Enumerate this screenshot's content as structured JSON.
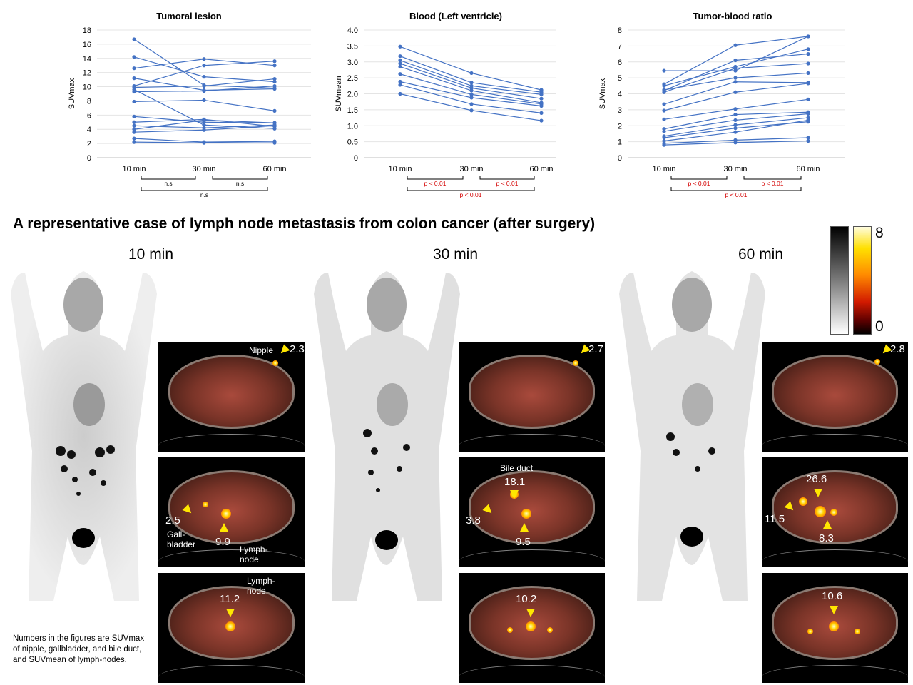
{
  "chart_data": [
    {
      "type": "line",
      "title": "Tumoral lesion",
      "ylabel": "SUVmax",
      "ylim": [
        0,
        18
      ],
      "yticks": [
        "0",
        "2",
        "4",
        "6",
        "8",
        "10",
        "12",
        "14",
        "16",
        "18"
      ],
      "categories": [
        "10 min",
        "30 min",
        "60 min"
      ],
      "color": "#4472c4",
      "series": [
        {
          "values": [
            16.7,
            10.2,
            9.8
          ]
        },
        {
          "values": [
            14.2,
            11.4,
            10.7
          ]
        },
        {
          "values": [
            12.6,
            13.9,
            13.0
          ]
        },
        {
          "values": [
            11.2,
            9.5,
            9.7
          ]
        },
        {
          "values": [
            10.1,
            13.0,
            13.6
          ]
        },
        {
          "values": [
            9.9,
            10.1,
            11.1
          ]
        },
        {
          "values": [
            9.6,
            4.6,
            4.1
          ]
        },
        {
          "values": [
            9.3,
            9.4,
            10.1
          ]
        },
        {
          "values": [
            7.9,
            8.1,
            6.6
          ]
        },
        {
          "values": [
            5.8,
            5.0,
            4.9
          ]
        },
        {
          "values": [
            5.0,
            5.4,
            4.4
          ]
        },
        {
          "values": [
            4.5,
            4.2,
            4.6
          ]
        },
        {
          "values": [
            4.0,
            5.3,
            4.9
          ]
        },
        {
          "values": [
            3.6,
            3.9,
            4.5
          ]
        },
        {
          "values": [
            2.7,
            2.2,
            2.3
          ]
        },
        {
          "values": [
            2.2,
            2.1,
            2.1
          ]
        }
      ],
      "brackets": [
        "n.s",
        "n.s",
        "n.s"
      ]
    },
    {
      "type": "line",
      "title": "Blood (Left ventricle)",
      "ylabel": "SUVmean",
      "ylim": [
        0,
        4.0
      ],
      "yticks": [
        "0",
        "0.5",
        "1.0",
        "1.5",
        "2.0",
        "2.5",
        "3.0",
        "3.5",
        "4.0"
      ],
      "categories": [
        "10 min",
        "30 min",
        "60 min"
      ],
      "color": "#4472c4",
      "series": [
        {
          "values": [
            3.48,
            2.65,
            2.12
          ]
        },
        {
          "values": [
            3.18,
            2.35,
            2.05
          ]
        },
        {
          "values": [
            3.05,
            2.25,
            1.98
          ]
        },
        {
          "values": [
            2.95,
            2.18,
            1.85
          ]
        },
        {
          "values": [
            2.85,
            2.1,
            1.72
          ]
        },
        {
          "values": [
            2.62,
            1.98,
            1.68
          ]
        },
        {
          "values": [
            2.38,
            1.88,
            1.62
          ]
        },
        {
          "values": [
            2.28,
            1.68,
            1.4
          ]
        },
        {
          "values": [
            2.0,
            1.48,
            1.16
          ]
        }
      ],
      "brackets": [
        "p < 0.01",
        "p < 0.01",
        "p < 0.01"
      ]
    },
    {
      "type": "line",
      "title": "Tumor-blood ratio",
      "ylabel": "SUVmax",
      "ylim": [
        0,
        8
      ],
      "yticks": [
        "0",
        "1",
        "2",
        "3",
        "4",
        "5",
        "6",
        "7",
        "8"
      ],
      "categories": [
        "10 min",
        "30 min",
        "60 min"
      ],
      "color": "#4472c4",
      "series": [
        {
          "values": [
            5.45,
            5.45,
            7.6
          ]
        },
        {
          "values": [
            4.6,
            7.05,
            7.6
          ]
        },
        {
          "values": [
            4.5,
            5.7,
            6.8
          ]
        },
        {
          "values": [
            4.2,
            6.1,
            6.5
          ]
        },
        {
          "values": [
            4.1,
            5.6,
            5.9
          ]
        },
        {
          "values": [
            4.25,
            5.0,
            5.3
          ]
        },
        {
          "values": [
            3.35,
            4.75,
            4.7
          ]
        },
        {
          "values": [
            2.95,
            4.1,
            4.65
          ]
        },
        {
          "values": [
            2.4,
            3.05,
            3.65
          ]
        },
        {
          "values": [
            1.8,
            2.7,
            2.85
          ]
        },
        {
          "values": [
            1.65,
            2.35,
            2.75
          ]
        },
        {
          "values": [
            1.35,
            2.05,
            2.5
          ]
        },
        {
          "values": [
            1.25,
            1.85,
            2.25
          ]
        },
        {
          "values": [
            1.05,
            1.6,
            2.35
          ]
        },
        {
          "values": [
            0.9,
            1.1,
            1.25
          ]
        },
        {
          "values": [
            0.8,
            0.95,
            1.05
          ]
        }
      ],
      "brackets": [
        "p < 0.01",
        "p < 0.01",
        "p < 0.01"
      ]
    }
  ],
  "section_title": "A representative case of lymph node metastasis from colon cancer (after surgery)",
  "timepoints": [
    "10 min",
    "30 min",
    "60 min"
  ],
  "colorbar": {
    "max": "8",
    "min": "0"
  },
  "ct_labels": {
    "nipple": "Nipple",
    "bile_duct": "Bile duct",
    "gallbladder": "Gall-\nbladder",
    "lymph_node": "Lymph-\nnode"
  },
  "values": {
    "t10": {
      "nipple": "2.3",
      "gallbladder": "2.5",
      "lymph_node_a": "9.9",
      "lymph_node_b": "11.2"
    },
    "t30": {
      "nipple": "2.7",
      "bile_duct": "18.1",
      "gallbladder": "3.8",
      "lymph_node_a": "9.5",
      "lymph_node_b": "10.2"
    },
    "t60": {
      "nipple": "2.8",
      "bile_duct": "26.6",
      "gallbladder": "11.5",
      "lymph_node_a": "8.3",
      "lymph_node_b": "10.6"
    }
  },
  "note": "Numbers in the figures are SUVmax of nipple, gallbladder, and bile duct, and SUVmean of lymph-nodes."
}
